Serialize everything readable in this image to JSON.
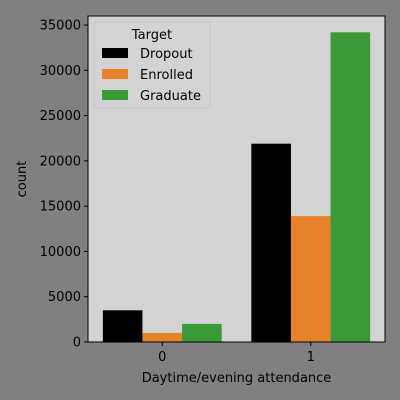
{
  "chart_data": {
    "type": "bar",
    "xlabel": "Daytime/evening attendance",
    "ylabel": "count",
    "categories": [
      "0",
      "1"
    ],
    "ylim": [
      0,
      36000
    ],
    "yticks": [
      0,
      5000,
      10000,
      15000,
      20000,
      25000,
      30000,
      35000
    ],
    "legend": {
      "title": "Target",
      "position": "top-left"
    },
    "series": [
      {
        "name": "Dropout",
        "color": "#000000",
        "values": [
          3500,
          21900
        ]
      },
      {
        "name": "Enrolled",
        "color": "#e8822a",
        "values": [
          1000,
          13900
        ]
      },
      {
        "name": "Graduate",
        "color": "#3a9a38",
        "values": [
          2000,
          34200
        ]
      }
    ],
    "colors": {
      "figure_bg": "#808080",
      "plot_bg": "#d3d3d3"
    }
  }
}
